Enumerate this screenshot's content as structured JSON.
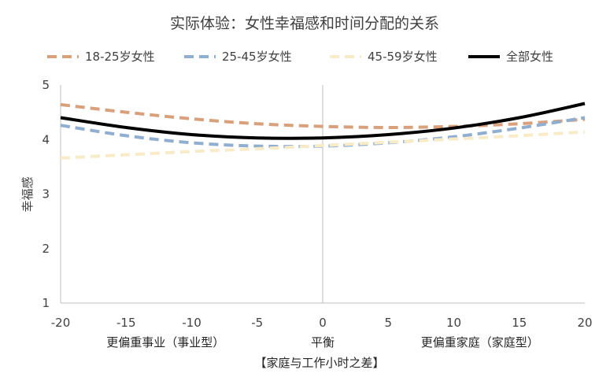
{
  "chart_data": {
    "type": "line",
    "title": "实际体验：女性幸福感和时间分配的关系",
    "xlabel": "【家庭与工作小时之差】",
    "ylabel": "幸福感",
    "xlim": [
      -20,
      20
    ],
    "ylim": [
      1,
      5
    ],
    "x_ticks": [
      -20,
      -15,
      -10,
      -5,
      0,
      5,
      10,
      15,
      20
    ],
    "y_ticks": [
      1,
      2,
      3,
      4,
      5
    ],
    "x_categories": [
      {
        "x": -12,
        "label": "更偏重事业（事业型）"
      },
      {
        "x": 0,
        "label": "平衡"
      },
      {
        "x": 12,
        "label": "更偏重家庭（家庭型）"
      }
    ],
    "legend_position": "top",
    "grid": false,
    "series": [
      {
        "name": "18-25岁女性",
        "color": "#d9a07c",
        "dash": "dashed",
        "width": 4,
        "x": [
          -20,
          -15,
          -10,
          -5,
          0,
          5,
          10,
          15,
          20
        ],
        "y": [
          4.64,
          4.5,
          4.38,
          4.29,
          4.24,
          4.22,
          4.24,
          4.29,
          4.37
        ]
      },
      {
        "name": "25-45岁女性",
        "color": "#90aed0",
        "dash": "dashed",
        "width": 4,
        "x": [
          -20,
          -15,
          -10,
          -5,
          0,
          5,
          10,
          15,
          20
        ],
        "y": [
          4.26,
          4.07,
          3.94,
          3.88,
          3.88,
          3.94,
          4.05,
          4.21,
          4.4
        ]
      },
      {
        "name": "45-59岁女性",
        "color": "#f8ebc8",
        "dash": "dashed",
        "width": 4,
        "x": [
          -20,
          -15,
          -10,
          -5,
          0,
          5,
          10,
          15,
          20
        ],
        "y": [
          3.66,
          3.72,
          3.78,
          3.83,
          3.89,
          3.95,
          4.01,
          4.07,
          4.14
        ]
      },
      {
        "name": "全部女性",
        "color": "#000000",
        "dash": "solid",
        "width": 4,
        "x": [
          -20,
          -15,
          -10,
          -5,
          0,
          5,
          10,
          15,
          20
        ],
        "y": [
          4.4,
          4.22,
          4.09,
          4.03,
          4.03,
          4.09,
          4.21,
          4.4,
          4.66
        ]
      }
    ]
  }
}
